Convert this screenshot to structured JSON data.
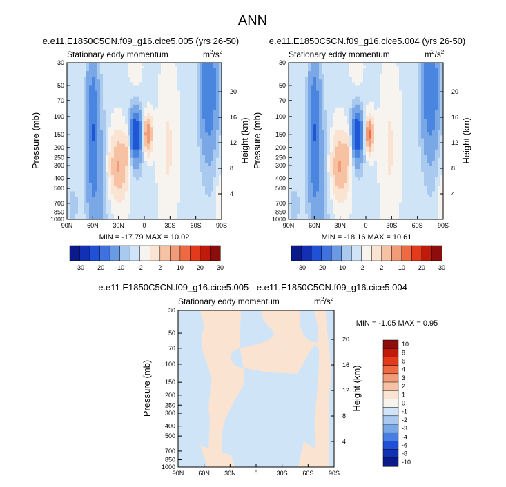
{
  "page_title": "ANN",
  "colors": {
    "background": "#ffffff",
    "neutral": "#f7f4f0",
    "blue_light": "#d0e4f7",
    "blue_mid": "#a9c9ef",
    "blue_strong": "#7aa7e6",
    "blue_deep": "#4a86e0",
    "blue_core": "#1f56d6",
    "orange_light": "#fbe3d2",
    "orange_mid": "#f7c2a3",
    "orange_strong": "#f29b78",
    "orange_core": "#ee6a43"
  },
  "chart_data": [
    {
      "type": "heatmap",
      "id": "panel1",
      "title": "e.e11.E1850C5CN.f09_g16.cice5.005 (yrs 26-50)",
      "subtitle_left": "Stationary eddy momentum",
      "units": {
        "base": "m",
        "exp1": "2",
        "mid": "/s",
        "exp2": "2"
      },
      "ylabel": "Pressure (mb)",
      "ylabel_right": "Height (km)",
      "xlabel": "",
      "xlim": [
        90,
        -90
      ],
      "ylim": [
        1000,
        30
      ],
      "xticks": [
        {
          "v": 90,
          "label": "90N"
        },
        {
          "v": 60,
          "label": "60N"
        },
        {
          "v": 30,
          "label": "30N"
        },
        {
          "v": 0,
          "label": "0"
        },
        {
          "v": -30,
          "label": "30S"
        },
        {
          "v": -60,
          "label": "60S"
        },
        {
          "v": -90,
          "label": "90S"
        }
      ],
      "yticks": [
        30,
        50,
        70,
        100,
        150,
        200,
        250,
        300,
        400,
        500,
        700,
        850,
        1000
      ],
      "height_ticks": [
        4,
        8,
        12,
        16,
        20
      ],
      "stats": {
        "text": "MIN = -17.79  MAX =  10.02",
        "min": -17.79,
        "max": 10.02
      },
      "colorbar_labels": [
        "-30",
        "-20",
        "-10",
        "-2",
        "2",
        "10",
        "20",
        "30"
      ],
      "blobs": [
        {
          "lat": 30,
          "p": 300,
          "dx": 12,
          "dlp": 0.33,
          "v": 3.5
        },
        {
          "lat": 20,
          "p": 200,
          "dx": 4,
          "dlp": 0.18,
          "v": 1.5
        },
        {
          "lat": -4,
          "p": 150,
          "dx": 5,
          "dlp": 0.18,
          "v": 5
        },
        {
          "lat": -28,
          "p": 200,
          "dx": 10,
          "dlp": 0.7,
          "v": 1.2
        },
        {
          "lat": 10,
          "p": 150,
          "dx": 5,
          "dlp": 0.18,
          "v": -6
        },
        {
          "lat": 10,
          "p": 160,
          "dx": 9,
          "dlp": 0.36,
          "v": -3
        },
        {
          "lat": 60,
          "p": 130,
          "dx": 6,
          "dlp": 0.6,
          "v": -3.5
        },
        {
          "lat": 60,
          "p": 250,
          "dx": 10,
          "dlp": 1.4,
          "v": -1.5
        },
        {
          "lat": 50,
          "p": 500,
          "dx": 10,
          "dlp": 0.8,
          "v": -1.2
        },
        {
          "lat": -75,
          "p": 50,
          "dx": 10,
          "dlp": 0.5,
          "v": -3.5
        },
        {
          "lat": -75,
          "p": 80,
          "dx": 12,
          "dlp": 0.9,
          "v": -1.6
        },
        {
          "lat": -88,
          "p": 700,
          "dx": 4,
          "dlp": 0.3,
          "v": 1.2
        },
        {
          "lat": 10,
          "p": 40,
          "dx": 8,
          "dlp": 0.3,
          "v": 0.6
        },
        {
          "lat": 83,
          "p": 750,
          "dx": 6,
          "dlp": 0.2,
          "v": -1.2
        }
      ]
    },
    {
      "type": "heatmap",
      "id": "panel2",
      "title": "e.e11.E1850C5CN.f09_g16.cice5.004 (yrs 26-50)",
      "subtitle_left": "Stationary eddy momentum",
      "units": {
        "base": "m",
        "exp1": "2",
        "mid": "/s",
        "exp2": "2"
      },
      "ylabel": "Pressure (mb)",
      "ylabel_right": "Height (km)",
      "xlabel": "",
      "xlim": [
        90,
        -90
      ],
      "ylim": [
        1000,
        30
      ],
      "xticks": [
        {
          "v": 90,
          "label": "90N"
        },
        {
          "v": 60,
          "label": "60N"
        },
        {
          "v": 30,
          "label": "30N"
        },
        {
          "v": 0,
          "label": "0"
        },
        {
          "v": -30,
          "label": "30S"
        },
        {
          "v": -60,
          "label": "60S"
        },
        {
          "v": -90,
          "label": "90S"
        }
      ],
      "yticks": [
        30,
        50,
        70,
        100,
        150,
        200,
        250,
        300,
        400,
        500,
        700,
        850,
        1000
      ],
      "height_ticks": [
        4,
        8,
        12,
        16,
        20
      ],
      "stats": {
        "text": "MIN = -18.16  MAX =  10.61",
        "min": -18.16,
        "max": 10.61
      },
      "colorbar_labels": [
        "-30",
        "-20",
        "-10",
        "-2",
        "2",
        "10",
        "20",
        "30"
      ],
      "blobs": [
        {
          "lat": 30,
          "p": 300,
          "dx": 12,
          "dlp": 0.33,
          "v": 3.5
        },
        {
          "lat": 20,
          "p": 200,
          "dx": 4,
          "dlp": 0.18,
          "v": 1.5
        },
        {
          "lat": -4,
          "p": 150,
          "dx": 5,
          "dlp": 0.18,
          "v": 5.5
        },
        {
          "lat": -28,
          "p": 200,
          "dx": 10,
          "dlp": 0.7,
          "v": 1.2
        },
        {
          "lat": 10,
          "p": 150,
          "dx": 5,
          "dlp": 0.18,
          "v": -6
        },
        {
          "lat": 10,
          "p": 160,
          "dx": 9,
          "dlp": 0.36,
          "v": -3
        },
        {
          "lat": 60,
          "p": 130,
          "dx": 6,
          "dlp": 0.6,
          "v": -3.5
        },
        {
          "lat": 60,
          "p": 250,
          "dx": 10,
          "dlp": 1.4,
          "v": -1.5
        },
        {
          "lat": 50,
          "p": 500,
          "dx": 10,
          "dlp": 0.8,
          "v": -1.2
        },
        {
          "lat": -75,
          "p": 50,
          "dx": 10,
          "dlp": 0.5,
          "v": -3.5
        },
        {
          "lat": -75,
          "p": 80,
          "dx": 12,
          "dlp": 0.9,
          "v": -1.6
        },
        {
          "lat": -88,
          "p": 700,
          "dx": 4,
          "dlp": 0.3,
          "v": 1.2
        },
        {
          "lat": 10,
          "p": 40,
          "dx": 8,
          "dlp": 0.3,
          "v": 0.6
        },
        {
          "lat": 83,
          "p": 750,
          "dx": 6,
          "dlp": 0.2,
          "v": -1.2
        }
      ]
    },
    {
      "type": "heatmap",
      "id": "panel3",
      "title": "e.e11.E1850C5CN.f09_g16.cice5.005 - e.e11.E1850C5CN.f09_g16.cice5.004",
      "subtitle_left": "Stationary eddy momentum",
      "units": {
        "base": "m",
        "exp1": "2",
        "mid": "/s",
        "exp2": "2"
      },
      "ylabel": "Pressure (mb)",
      "ylabel_right": "Height (km)",
      "xlabel": "",
      "xlim": [
        90,
        -90
      ],
      "ylim": [
        1000,
        30
      ],
      "xticks": [
        {
          "v": 90,
          "label": "90N"
        },
        {
          "v": 60,
          "label": "60N"
        },
        {
          "v": 30,
          "label": "30N"
        },
        {
          "v": 0,
          "label": "0"
        },
        {
          "v": -30,
          "label": "30S"
        },
        {
          "v": -60,
          "label": "60S"
        },
        {
          "v": -90,
          "label": "90S"
        }
      ],
      "yticks": [
        30,
        50,
        70,
        100,
        150,
        200,
        250,
        300,
        400,
        500,
        700,
        850,
        1000
      ],
      "height_ticks": [
        4,
        8,
        12,
        16,
        20
      ],
      "stats": {
        "text": "MIN = -1.05  MAX =  0.95",
        "min": -1.05,
        "max": 0.95
      },
      "colorbar_labels": [
        "10",
        "8",
        "6",
        "4",
        "3",
        "2",
        "1",
        "0",
        "-1",
        "-2",
        "-3",
        "-4",
        "-6",
        "-8",
        "-10"
      ],
      "blobs": []
    }
  ]
}
